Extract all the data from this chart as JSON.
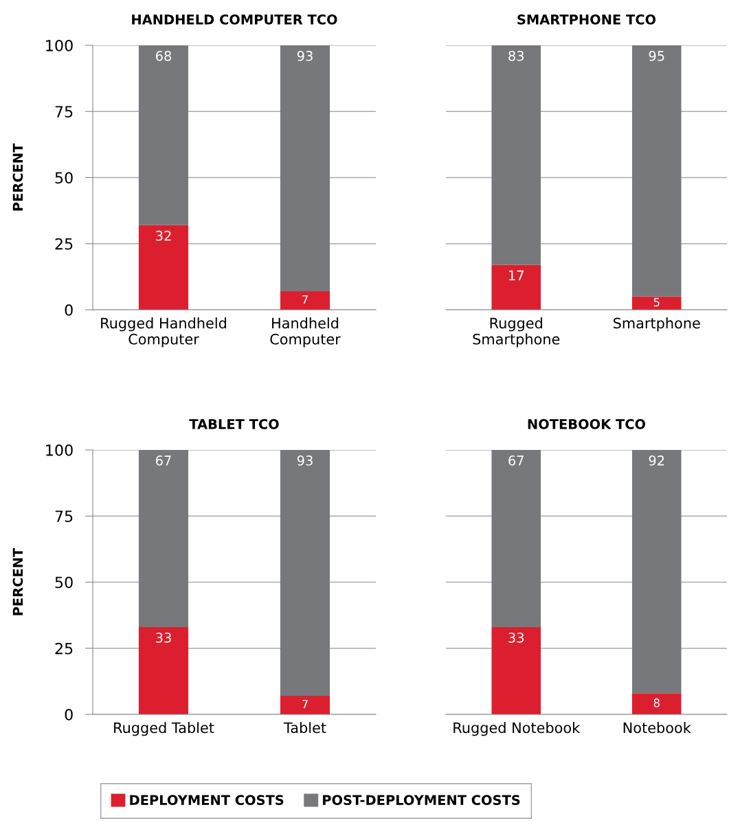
{
  "chart_data": [
    {
      "type": "bar",
      "title": "HANDHELD COMPUTER TCO",
      "ylabel": "PERCENT",
      "categories": [
        "Rugged Handheld\nComputer",
        "Handheld\nComputer"
      ],
      "stacked": true,
      "ylim": [
        0,
        100
      ],
      "yticks": [
        0,
        25,
        50,
        75,
        100
      ],
      "grid": "y",
      "data_labels": true,
      "legend": "bottom",
      "series": [
        {
          "name": "DEPLOYMENT COSTS",
          "color": "#dc1f2e",
          "values": [
            32,
            7
          ]
        },
        {
          "name": "POST-DEPLOYMENT COSTS",
          "color": "#77787b",
          "values": [
            68,
            93
          ]
        }
      ]
    },
    {
      "type": "bar",
      "title": "SMARTPHONE TCO",
      "categories": [
        "Rugged\nSmartphone",
        "Smartphone"
      ],
      "stacked": true,
      "ylim": [
        0,
        100
      ],
      "yticks": [
        0,
        25,
        50,
        75,
        100
      ],
      "grid": "y",
      "data_labels": true,
      "tick_labels": "x",
      "series": [
        {
          "color": "#dc1f2e",
          "values": [
            17,
            5
          ]
        },
        {
          "color": "#77787b",
          "values": [
            83,
            95
          ]
        }
      ]
    },
    {
      "type": "bar",
      "title": "TABLET TCO",
      "ylabel": "PERCENT",
      "categories": [
        "Rugged Tablet",
        "Tablet"
      ],
      "stacked": true,
      "ylim": [
        0,
        100
      ],
      "yticks": [
        0,
        25,
        50,
        75,
        100
      ],
      "grid": "y",
      "data_labels": true,
      "series": [
        {
          "color": "#dc1f2e",
          "values": [
            33,
            7
          ]
        },
        {
          "color": "#77787b",
          "values": [
            67,
            93
          ]
        }
      ]
    },
    {
      "type": "bar",
      "title": "NOTEBOOK TCO",
      "categories": [
        "Rugged Notebook",
        "Notebook"
      ],
      "stacked": true,
      "ylim": [
        0,
        100
      ],
      "yticks": [
        0,
        25,
        50,
        75,
        100
      ],
      "grid": "y",
      "data_labels": true,
      "tick_labels": "x",
      "series": [
        {
          "color": "#dc1f2e",
          "values": [
            33,
            8
          ]
        },
        {
          "color": "#77787b",
          "values": [
            67,
            92
          ]
        }
      ]
    }
  ]
}
